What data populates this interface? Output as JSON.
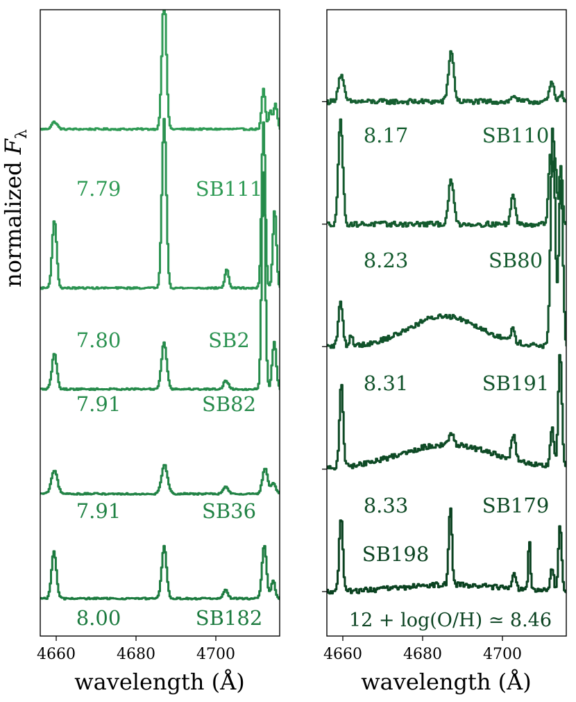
{
  "ylabel": "normalized F_λ",
  "ylabel_base": "normalized ",
  "ylabel_var": "F",
  "ylabel_sub": "λ",
  "chart_data": [
    {
      "type": "line",
      "panel": "left",
      "xlabel": "wavelength (Å)",
      "xlim": [
        4656,
        4716
      ],
      "xticks": [
        4660,
        4680,
        4700
      ],
      "xtick_labels": [
        "4660",
        "4680",
        "4700"
      ],
      "series": [
        {
          "name": "SB111",
          "metallicity": "7.79",
          "color": "#2e9a54",
          "baseline": 6.5,
          "lines": [
            {
              "center": 4659.4,
              "amp": 0.1,
              "width": 0.7
            },
            {
              "center": 4686.9,
              "amp": 1.85,
              "width": 0.55
            },
            {
              "center": 4711.8,
              "amp": 0.55,
              "width": 0.45
            },
            {
              "center": 4713.5,
              "amp": 0.25,
              "width": 0.4
            },
            {
              "center": 4714.8,
              "amp": 0.35,
              "width": 0.45
            }
          ]
        },
        {
          "name": "SB2",
          "metallicity": "7.80",
          "color": "#2a9250",
          "baseline": 4.3,
          "lines": [
            {
              "center": 4659.4,
              "amp": 0.95,
              "width": 0.55
            },
            {
              "center": 4686.9,
              "amp": 2.35,
              "width": 0.55
            },
            {
              "center": 4702.6,
              "amp": 0.25,
              "width": 0.5
            },
            {
              "center": 4711.8,
              "amp": 2.3,
              "width": 0.45
            },
            {
              "center": 4714.6,
              "amp": 1.1,
              "width": 0.45
            }
          ]
        },
        {
          "name": "SB82",
          "metallicity": "7.91",
          "color": "#258a4a",
          "baseline": 2.9,
          "lines": [
            {
              "center": 4659.4,
              "amp": 0.5,
              "width": 0.6
            },
            {
              "center": 4686.9,
              "amp": 0.65,
              "width": 0.65
            },
            {
              "center": 4702.4,
              "amp": 0.12,
              "width": 0.6
            },
            {
              "center": 4711.8,
              "amp": 3.0,
              "width": 0.45
            },
            {
              "center": 4714.5,
              "amp": 0.65,
              "width": 0.5
            }
          ]
        },
        {
          "name": "SB36",
          "metallicity": "7.91",
          "color": "#208244",
          "baseline": 1.45,
          "lines": [
            {
              "center": 4659.4,
              "amp": 0.32,
              "width": 0.75
            },
            {
              "center": 4687.0,
              "amp": 0.4,
              "width": 0.75
            },
            {
              "center": 4702.4,
              "amp": 0.1,
              "width": 0.6
            },
            {
              "center": 4712.2,
              "amp": 0.35,
              "width": 0.65
            },
            {
              "center": 4714.3,
              "amp": 0.15,
              "width": 0.55
            }
          ]
        },
        {
          "name": "SB182",
          "metallicity": "8.00",
          "color": "#1b7a3e",
          "baseline": 0,
          "lines": [
            {
              "center": 4659.3,
              "amp": 0.65,
              "width": 0.6
            },
            {
              "center": 4686.9,
              "amp": 0.72,
              "width": 0.6
            },
            {
              "center": 4702.3,
              "amp": 0.12,
              "width": 0.55
            },
            {
              "center": 4712.0,
              "amp": 0.75,
              "width": 0.55
            },
            {
              "center": 4714.2,
              "amp": 0.25,
              "width": 0.5
            }
          ]
        }
      ]
    },
    {
      "type": "line",
      "panel": "right",
      "xlabel": "wavelength (Å)",
      "xlim": [
        4656,
        4716
      ],
      "xticks": [
        4660,
        4680,
        4700
      ],
      "xtick_labels": [
        "4660",
        "4680",
        "4700"
      ],
      "yticks": [
        0,
        1.4,
        2.8,
        4.2,
        5.6
      ],
      "series": [
        {
          "name": "SB110",
          "metallicity": "8.17",
          "color": "#155e30",
          "baseline": 5.6,
          "lines": [
            {
              "center": 4659.4,
              "amp": 0.3,
              "width": 0.7
            },
            {
              "center": 4687.0,
              "amp": 0.58,
              "width": 0.65
            },
            {
              "center": 4702.8,
              "amp": 0.07,
              "width": 0.6
            },
            {
              "center": 4712.2,
              "amp": 0.22,
              "width": 0.55
            },
            {
              "center": 4714.5,
              "amp": 0.1,
              "width": 0.5
            }
          ]
        },
        {
          "name": "SB80",
          "metallicity": "8.23",
          "color": "#135a2d",
          "baseline": 4.2,
          "lines": [
            {
              "center": 4659.3,
              "amp": 1.2,
              "width": 0.55
            },
            {
              "center": 4687.0,
              "amp": 0.5,
              "width": 0.65
            },
            {
              "center": 4702.5,
              "amp": 0.33,
              "width": 0.55
            },
            {
              "center": 4711.8,
              "amp": 0.75,
              "width": 0.45
            },
            {
              "center": 4713.0,
              "amp": 0.75,
              "width": 0.45
            },
            {
              "center": 4714.5,
              "amp": 0.65,
              "width": 0.4
            }
          ]
        },
        {
          "name": "SB191",
          "metallicity": "8.31",
          "color": "#10522a",
          "baseline": 2.8,
          "lines": [
            {
              "center": 4659.3,
              "amp": 0.5,
              "width": 0.55
            },
            {
              "center": 4662.0,
              "amp": 0.12,
              "width": 0.4
            },
            {
              "center": 4702.4,
              "amp": 0.14,
              "width": 0.5
            },
            {
              "center": 4712.5,
              "amp": 2.5,
              "width": 0.55
            },
            {
              "center": 4714.5,
              "amp": 1.9,
              "width": 0.5
            }
          ],
          "broad": {
            "center": 4685.5,
            "amp": 0.35,
            "width": 9
          }
        },
        {
          "name": "SB179",
          "metallicity": "8.33",
          "color": "#0e4a25",
          "baseline": 1.4,
          "lines": [
            {
              "center": 4659.5,
              "amp": 0.95,
              "width": 0.45
            },
            {
              "center": 4687.0,
              "amp": 0.15,
              "width": 0.5
            },
            {
              "center": 4702.6,
              "amp": 0.28,
              "width": 0.5
            },
            {
              "center": 4712.3,
              "amp": 0.45,
              "width": 0.45
            },
            {
              "center": 4714.3,
              "amp": 1.3,
              "width": 0.45
            }
          ],
          "broad": {
            "center": 4686.0,
            "amp": 0.28,
            "width": 12
          }
        },
        {
          "name": "SB198",
          "metallicity": "",
          "color": "#0a4220",
          "baseline": 0,
          "lines": [
            {
              "center": 4659.4,
              "amp": 0.85,
              "width": 0.45
            },
            {
              "center": 4686.8,
              "amp": 0.9,
              "width": 0.4
            },
            {
              "center": 4702.8,
              "amp": 0.2,
              "width": 0.4
            },
            {
              "center": 4706.6,
              "amp": 0.6,
              "width": 0.25
            },
            {
              "center": 4712.3,
              "amp": 0.25,
              "width": 0.4
            },
            {
              "center": 4714.3,
              "amp": 0.75,
              "width": 0.4
            }
          ],
          "broad": {
            "center": 4687,
            "amp": 0.08,
            "width": 12
          }
        }
      ],
      "annotation": "12 + log(O/H) ≃ 8.46"
    }
  ]
}
